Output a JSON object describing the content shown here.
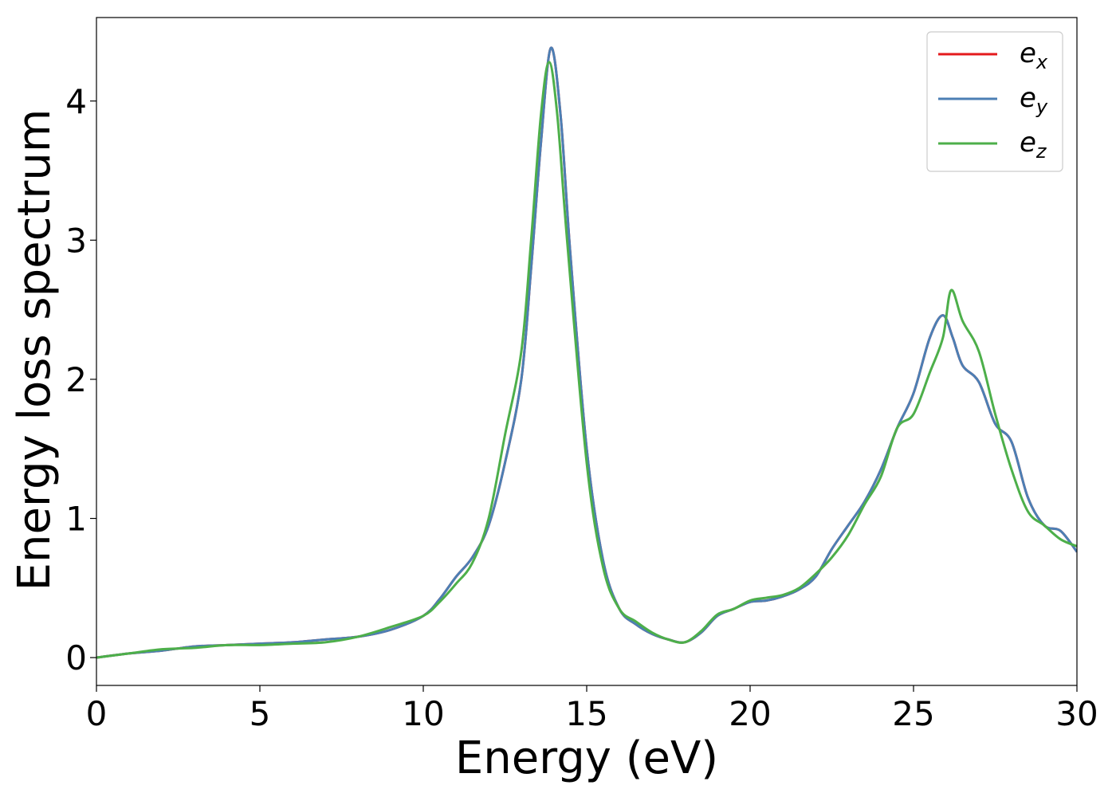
{
  "chart_data": {
    "type": "line",
    "title": "",
    "xlabel": "Energy (eV)",
    "ylabel": "Energy loss spectrum",
    "xlim": [
      0,
      30
    ],
    "ylim": [
      -0.2,
      4.6
    ],
    "xticks": [
      0,
      5,
      10,
      15,
      20,
      25,
      30
    ],
    "xtick_labels": [
      "0",
      "5",
      "10",
      "15",
      "20",
      "25",
      "30"
    ],
    "yticks": [
      0,
      1,
      2,
      3,
      4
    ],
    "ytick_labels": [
      "0",
      "1",
      "2",
      "3",
      "4"
    ],
    "grid": false,
    "legend_position": "top-right",
    "series": [
      {
        "name": "e_x",
        "legend_base": "e",
        "legend_sub": "x",
        "color": "#e41a1c",
        "x": [
          0,
          1,
          2,
          3,
          4,
          5,
          6,
          7,
          8,
          9,
          10,
          10.5,
          11,
          11.5,
          12,
          12.5,
          13,
          13.3,
          13.6,
          13.9,
          14.2,
          14.5,
          15,
          15.5,
          16,
          16.5,
          17,
          17.5,
          18,
          18.5,
          19,
          19.5,
          20,
          20.5,
          21,
          21.5,
          22,
          22.5,
          23,
          23.5,
          24,
          24.5,
          25,
          25.5,
          25.9,
          26.2,
          26.5,
          27,
          27.5,
          28,
          28.5,
          29,
          29.5,
          30
        ],
        "y": [
          0.0,
          0.03,
          0.05,
          0.08,
          0.09,
          0.1,
          0.11,
          0.13,
          0.15,
          0.2,
          0.3,
          0.42,
          0.58,
          0.72,
          0.95,
          1.4,
          2.0,
          2.8,
          3.7,
          4.38,
          3.9,
          2.9,
          1.5,
          0.7,
          0.35,
          0.24,
          0.17,
          0.13,
          0.11,
          0.18,
          0.3,
          0.35,
          0.4,
          0.41,
          0.44,
          0.49,
          0.58,
          0.78,
          0.95,
          1.12,
          1.35,
          1.65,
          1.9,
          2.3,
          2.46,
          2.3,
          2.1,
          1.98,
          1.68,
          1.55,
          1.15,
          0.95,
          0.91,
          0.76
        ]
      },
      {
        "name": "e_y",
        "legend_base": "e",
        "legend_sub": "y",
        "color": "#4c7fb4",
        "x": [
          0,
          1,
          2,
          3,
          4,
          5,
          6,
          7,
          8,
          9,
          10,
          10.5,
          11,
          11.5,
          12,
          12.5,
          13,
          13.3,
          13.6,
          13.9,
          14.2,
          14.5,
          15,
          15.5,
          16,
          16.5,
          17,
          17.5,
          18,
          18.5,
          19,
          19.5,
          20,
          20.5,
          21,
          21.5,
          22,
          22.5,
          23,
          23.5,
          24,
          24.5,
          25,
          25.5,
          25.9,
          26.2,
          26.5,
          27,
          27.5,
          28,
          28.5,
          29,
          29.5,
          30
        ],
        "y": [
          0.0,
          0.03,
          0.05,
          0.08,
          0.09,
          0.1,
          0.11,
          0.13,
          0.15,
          0.2,
          0.3,
          0.42,
          0.58,
          0.72,
          0.95,
          1.4,
          2.0,
          2.8,
          3.7,
          4.38,
          3.9,
          2.9,
          1.5,
          0.7,
          0.35,
          0.24,
          0.17,
          0.13,
          0.11,
          0.18,
          0.3,
          0.35,
          0.4,
          0.41,
          0.44,
          0.49,
          0.58,
          0.78,
          0.95,
          1.12,
          1.35,
          1.65,
          1.9,
          2.3,
          2.46,
          2.3,
          2.1,
          1.98,
          1.68,
          1.55,
          1.15,
          0.95,
          0.91,
          0.76
        ]
      },
      {
        "name": "e_z",
        "legend_base": "e",
        "legend_sub": "z",
        "color": "#4daf4a",
        "x": [
          0,
          1,
          2,
          3,
          4,
          5,
          6,
          7,
          8,
          9,
          10,
          10.5,
          11,
          11.5,
          12,
          12.5,
          13,
          13.3,
          13.6,
          13.85,
          14.1,
          14.4,
          15,
          15.5,
          16,
          16.5,
          17,
          17.5,
          18,
          18.5,
          19,
          19.5,
          20,
          20.5,
          21,
          21.5,
          22,
          22.5,
          23,
          23.5,
          24,
          24.5,
          25,
          25.5,
          25.9,
          26.15,
          26.5,
          27,
          27.5,
          28,
          28.5,
          29,
          29.5,
          30
        ],
        "y": [
          0.0,
          0.03,
          0.06,
          0.07,
          0.09,
          0.09,
          0.1,
          0.11,
          0.15,
          0.22,
          0.3,
          0.4,
          0.53,
          0.68,
          1.0,
          1.6,
          2.2,
          3.0,
          3.9,
          4.28,
          3.9,
          3.0,
          1.4,
          0.65,
          0.35,
          0.26,
          0.18,
          0.13,
          0.11,
          0.19,
          0.31,
          0.35,
          0.41,
          0.43,
          0.45,
          0.5,
          0.6,
          0.72,
          0.88,
          1.1,
          1.3,
          1.65,
          1.75,
          2.05,
          2.3,
          2.64,
          2.42,
          2.2,
          1.75,
          1.35,
          1.05,
          0.95,
          0.85,
          0.8
        ]
      }
    ]
  }
}
